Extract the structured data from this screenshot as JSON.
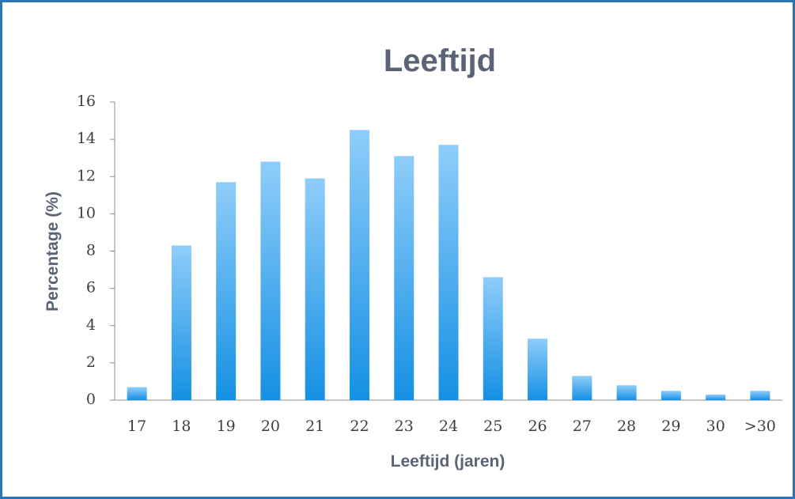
{
  "chart_data": {
    "type": "bar",
    "title": "Leeftijd",
    "x_label": "Leeftijd (jaren)",
    "y_label": "Percentage (%)",
    "categories": [
      "17",
      "18",
      "19",
      "20",
      "21",
      "22",
      "23",
      "24",
      "25",
      "26",
      "27",
      "28",
      "29",
      "30",
      ">30"
    ],
    "values": [
      0.7,
      8.3,
      11.7,
      12.8,
      11.9,
      14.5,
      13.1,
      13.7,
      6.6,
      3.3,
      1.3,
      0.8,
      0.5,
      0.3,
      0.5
    ],
    "color": "#1590e3",
    "ylim": [
      0,
      16
    ],
    "yticks": [
      0,
      2,
      4,
      6,
      8,
      10,
      12,
      14,
      16
    ],
    "grid": false
  }
}
